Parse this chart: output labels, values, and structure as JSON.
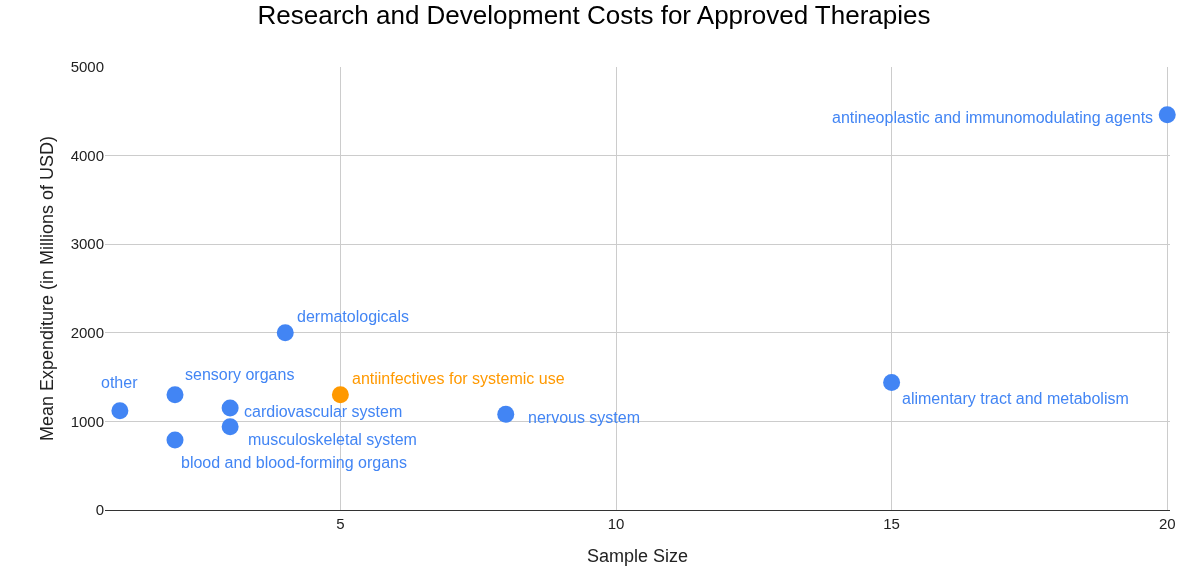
{
  "chart_data": {
    "type": "scatter",
    "title": "Research and Development Costs for Approved Therapies",
    "xlabel": "Sample Size",
    "ylabel": "Mean Expenditure (in Millions of USD)",
    "x": [
      1,
      2,
      2,
      3,
      3,
      4,
      5,
      8,
      15,
      20
    ],
    "values": [
      1120,
      1300,
      790,
      1150,
      940,
      2000,
      1300,
      1080,
      1440,
      4460
    ],
    "colors": [
      "#4285f4",
      "#4285f4",
      "#4285f4",
      "#4285f4",
      "#4285f4",
      "#4285f4",
      "#ff9900",
      "#4285f4",
      "#4285f4",
      "#4285f4"
    ],
    "annotations": [
      {
        "text": "other",
        "x": 1,
        "y": 1120
      },
      {
        "text": "sensory organs",
        "x": 2,
        "y": 1300
      },
      {
        "text": "blood and blood-forming organs",
        "x": 2,
        "y": 790
      },
      {
        "text": "cardiovascular system",
        "x": 3,
        "y": 1150
      },
      {
        "text": "musculoskeletal system",
        "x": 3,
        "y": 940
      },
      {
        "text": "dermatologicals",
        "x": 4,
        "y": 2000
      },
      {
        "text": "antiinfectives for systemic use",
        "x": 5,
        "y": 1300
      },
      {
        "text": "nervous system",
        "x": 8,
        "y": 1080
      },
      {
        "text": "alimentary tract and metabolism",
        "x": 15,
        "y": 1440
      },
      {
        "text": "antineoplastic and immunomodulating agents",
        "x": 20,
        "y": 4460
      }
    ],
    "xlim": [
      0.73,
      20.05
    ],
    "xticks": [
      5,
      10,
      15,
      20
    ],
    "ylim": [
      0,
      5000
    ],
    "yticks": [
      0,
      1000,
      2000,
      3000,
      4000,
      5000
    ],
    "grid": true,
    "legend": false,
    "marker": "circle"
  }
}
